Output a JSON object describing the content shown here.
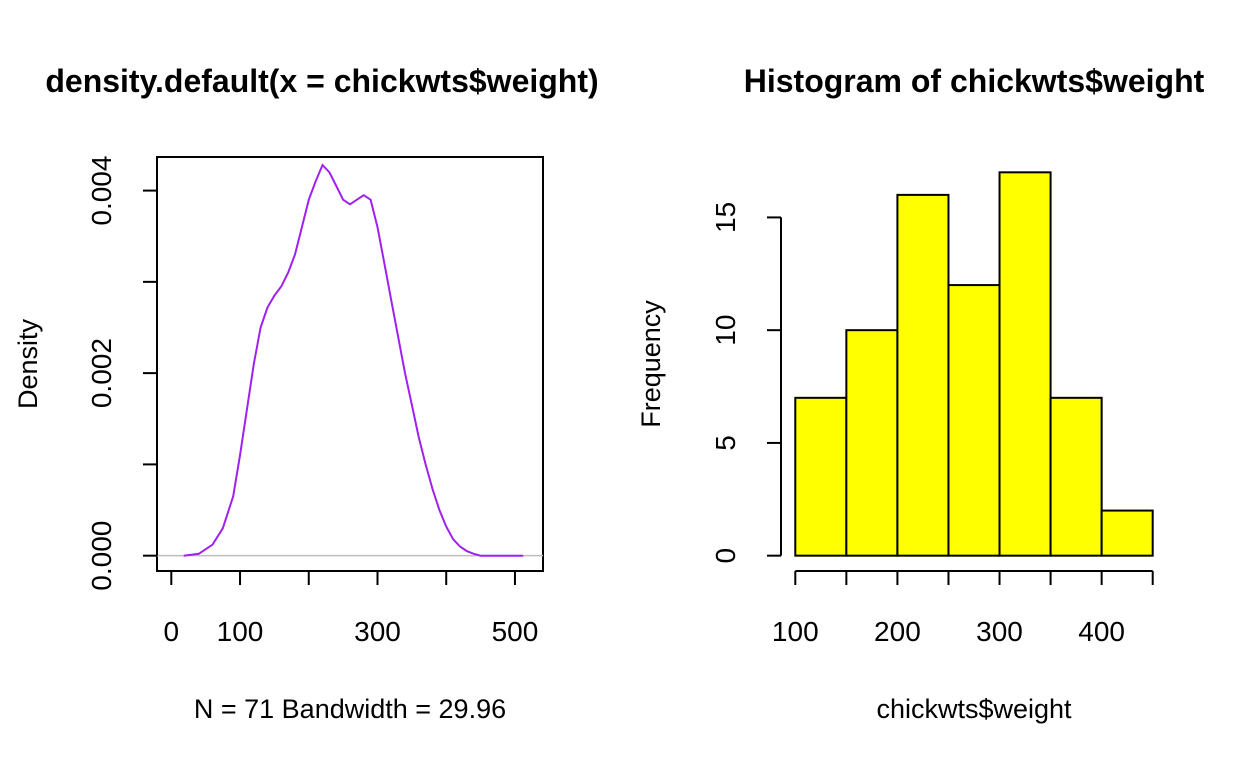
{
  "chart_data": [
    {
      "type": "line",
      "title": "density.default(x = chickwts$weight)",
      "xlabel": "N = 71   Bandwidth = 29.96",
      "ylabel": "Density",
      "line_color": "#A020F0",
      "baseline_color": "#BEBEBE",
      "xlim": [
        0,
        520
      ],
      "ylim": [
        0,
        0.0042
      ],
      "x_ticks": [
        0,
        100,
        200,
        300,
        400,
        500
      ],
      "x_tick_labels": [
        "0",
        "100",
        "",
        "300",
        "",
        "500"
      ],
      "y_ticks": [
        0,
        0.001,
        0.002,
        0.003,
        0.004
      ],
      "y_tick_labels": [
        "0.000",
        "",
        "0.002",
        "",
        "0.004"
      ],
      "x": [
        18,
        40,
        60,
        75,
        90,
        100,
        110,
        120,
        130,
        140,
        150,
        160,
        170,
        180,
        190,
        200,
        210,
        220,
        230,
        240,
        250,
        260,
        270,
        280,
        290,
        300,
        310,
        320,
        330,
        340,
        350,
        360,
        370,
        380,
        390,
        400,
        410,
        420,
        430,
        440,
        450,
        460,
        470,
        480,
        500,
        512
      ],
      "y": [
        0.0,
        2e-05,
        0.00012,
        0.0003,
        0.00065,
        0.0011,
        0.0016,
        0.0021,
        0.0025,
        0.00272,
        0.00285,
        0.00295,
        0.0031,
        0.0033,
        0.0036,
        0.0039,
        0.0041,
        0.00428,
        0.0042,
        0.00405,
        0.0039,
        0.00385,
        0.0039,
        0.00395,
        0.0039,
        0.0036,
        0.0032,
        0.0028,
        0.0024,
        0.002,
        0.00165,
        0.0013,
        0.001,
        0.00073,
        0.0005,
        0.00032,
        0.00018,
        0.0001,
        5e-05,
        2e-05,
        0.0,
        0.0,
        0.0,
        0.0,
        0.0,
        0.0
      ],
      "frame": true
    },
    {
      "type": "bar",
      "title": "Histogram of chickwts$weight",
      "xlabel": "chickwts$weight",
      "ylabel": "Frequency",
      "bar_color": "#FFFF00",
      "edge_color": "#000000",
      "bins": [
        [
          100,
          150
        ],
        [
          150,
          200
        ],
        [
          200,
          250
        ],
        [
          250,
          300
        ],
        [
          300,
          350
        ],
        [
          350,
          400
        ],
        [
          400,
          450
        ]
      ],
      "values": [
        7,
        10,
        16,
        12,
        17,
        7,
        2
      ],
      "xlim": [
        100,
        450
      ],
      "ylim": [
        0,
        17
      ],
      "x_ticks": [
        100,
        150,
        200,
        250,
        300,
        350,
        400,
        450
      ],
      "x_tick_labels": [
        "100",
        "",
        "200",
        "",
        "300",
        "",
        "400",
        ""
      ],
      "y_ticks": [
        0,
        5,
        10,
        15
      ],
      "y_tick_labels": [
        "0",
        "5",
        "10",
        "15"
      ],
      "frame": false
    }
  ]
}
